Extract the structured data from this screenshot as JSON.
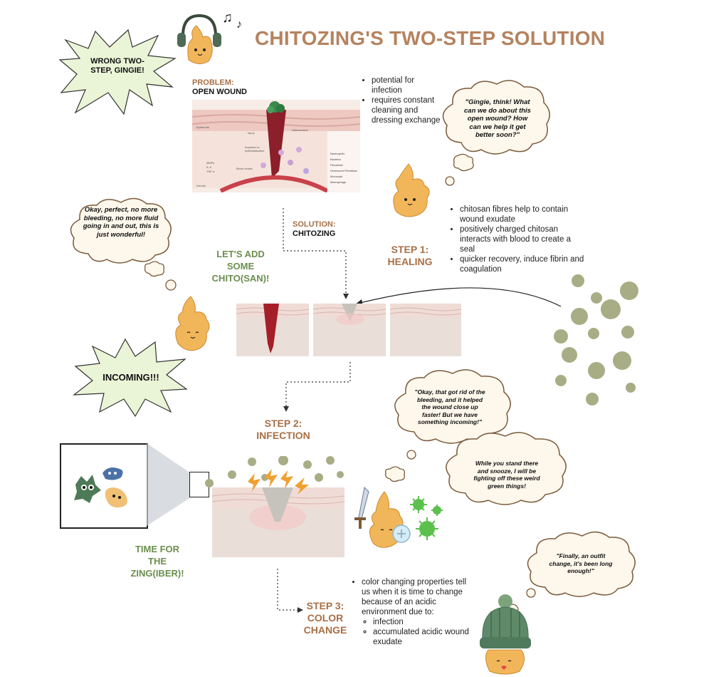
{
  "title": "CHITOZING'S TWO-STEP SOLUTION",
  "colors": {
    "title": "#b58360",
    "green": "#6b8e4e",
    "brown": "#a86f45",
    "cloud_fill": "#fdf7ec",
    "cloud_stroke": "#7a5a3a",
    "burst_fill": "#eaf4d6",
    "particle": "#a8ad86"
  },
  "burst_top": "WRONG TWO-STEP, GINGIE!",
  "burst_mid": "INCOMING!!!",
  "problem": {
    "label": "PROBLEM:",
    "value": "OPEN WOUND"
  },
  "problem_bullets": [
    "potential for infection",
    "requires constant cleaning and dressing exchange"
  ],
  "cloud_think": "\"Gingie, think! What can we do about this open wound? How can we help it get better soon?\"",
  "cloud_perfect": "Okay, perfect, no more bleeding, no more fluid going in and out, this is just wonderful!",
  "cloud_bleeding": "\"Okay, that got rid of the bleeding, and it helped the wound close up faster! But we have something incoming!\"",
  "cloud_snooze": "While you stand there and snooze, I will be fighting off these weird green things!",
  "cloud_outfit": "\"Finally, an outfit change, it's been long enough!\"",
  "solution": {
    "label": "SOLUTION:",
    "value": "CHITOZING"
  },
  "lets_add": "LET'S ADD SOME CHITO(SAN)!",
  "step1": "STEP 1: HEALING",
  "step1_bullets": [
    "chitosan fibres help to contain wound exudate",
    "positively charged chitosan interacts with blood to create a seal",
    "quicker recovery, induce fibrin and coagulation"
  ],
  "step2": "STEP 2: INFECTION",
  "time_for": "TIME FOR THE ZING(IBER)!",
  "step3": "STEP 3: COLOR CHANGE",
  "step3_bullet": "color changing properties tell us when it is time to change because of an acidic environment due to:",
  "step3_sub": [
    "infection",
    "accumulated acidic wound exudate"
  ],
  "wound_diagram": {
    "labels": [
      "Epidermis",
      "Injury",
      "Inflammation",
      "Impaired re-epithelialization",
      "MMPs",
      "IL-6",
      "TNF-a",
      "Blood vessel",
      "Dermis"
    ],
    "legend": [
      "Neutrophils",
      "Bacteria",
      "Fibroblast",
      "Senescent Fibroblast",
      "Monocyte",
      "Macrophage"
    ]
  },
  "icons": [
    "music-note-icon",
    "ginger-mascot-icon",
    "sword-icon",
    "shield-icon",
    "virus-icon",
    "beanie-hat-icon"
  ]
}
